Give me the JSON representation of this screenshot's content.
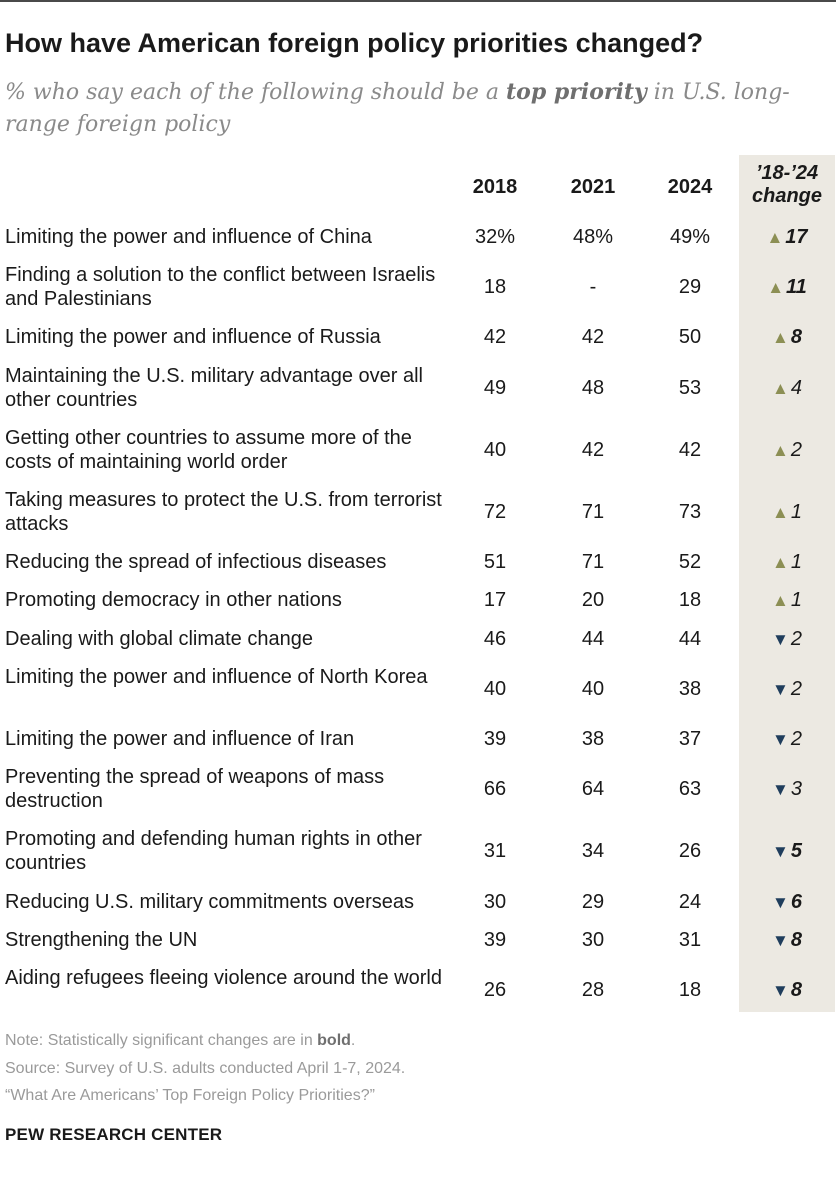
{
  "title": "How have American foreign policy priorities changed?",
  "subtitle_pre": "% who say each of the following should be a ",
  "subtitle_bold": "top priority",
  "subtitle_post": " in U.S. long-range foreign policy",
  "chart_data": {
    "type": "table",
    "columns": [
      "2018",
      "2021",
      "2024"
    ],
    "change_header_line1": "’18-’24",
    "change_header_line2": "change",
    "rows": [
      {
        "label": "Limiting the power and influence of China",
        "v2018": "32%",
        "v2021": "48%",
        "v2024": "49%",
        "change": "17",
        "direction": "up",
        "significant": true
      },
      {
        "label": "Finding a solution to the conflict between Israelis and Palestinians",
        "v2018": "18",
        "v2021": "-",
        "v2024": "29",
        "change": "11",
        "direction": "up",
        "significant": true
      },
      {
        "label": "Limiting the power and influence of Russia",
        "v2018": "42",
        "v2021": "42",
        "v2024": "50",
        "change": "8",
        "direction": "up",
        "significant": true
      },
      {
        "label": "Maintaining the U.S. military advantage over all other countries",
        "v2018": "49",
        "v2021": "48",
        "v2024": "53",
        "change": "4",
        "direction": "up",
        "significant": false
      },
      {
        "label": "Getting other countries to assume more of the costs of maintaining world order",
        "v2018": "40",
        "v2021": "42",
        "v2024": "42",
        "change": "2",
        "direction": "up",
        "significant": false
      },
      {
        "label": "Taking measures to protect the U.S. from terrorist attacks",
        "v2018": "72",
        "v2021": "71",
        "v2024": "73",
        "change": "1",
        "direction": "up",
        "significant": false
      },
      {
        "label": "Reducing the spread of infectious diseases",
        "v2018": "51",
        "v2021": "71",
        "v2024": "52",
        "change": "1",
        "direction": "up",
        "significant": false
      },
      {
        "label": "Promoting democracy in other nations",
        "v2018": "17",
        "v2021": "20",
        "v2024": "18",
        "change": "1",
        "direction": "up",
        "significant": false
      },
      {
        "label": "Dealing with global climate change",
        "v2018": "46",
        "v2021": "44",
        "v2024": "44",
        "change": "2",
        "direction": "down",
        "significant": false
      },
      {
        "label": "Limiting the power and influence of North Korea",
        "v2018": "40",
        "v2021": "40",
        "v2024": "38",
        "change": "2",
        "direction": "down",
        "significant": false
      },
      {
        "label": "Limiting the power and influence of Iran",
        "v2018": "39",
        "v2021": "38",
        "v2024": "37",
        "change": "2",
        "direction": "down",
        "significant": false
      },
      {
        "label": "Preventing the spread of weapons of mass destruction",
        "v2018": "66",
        "v2021": "64",
        "v2024": "63",
        "change": "3",
        "direction": "down",
        "significant": false
      },
      {
        "label": "Promoting and defending human rights in other countries",
        "v2018": "31",
        "v2021": "34",
        "v2024": "26",
        "change": "5",
        "direction": "down",
        "significant": true
      },
      {
        "label": "Reducing U.S. military commitments overseas",
        "v2018": "30",
        "v2021": "29",
        "v2024": "24",
        "change": "6",
        "direction": "down",
        "significant": true
      },
      {
        "label": "Strengthening the UN",
        "v2018": "39",
        "v2021": "30",
        "v2024": "31",
        "change": "8",
        "direction": "down",
        "significant": true
      },
      {
        "label": "Aiding refugees fleeing violence around the world",
        "v2018": "26",
        "v2021": "28",
        "v2024": "18",
        "change": "8",
        "direction": "down",
        "significant": true
      }
    ],
    "colors": {
      "up": "#8c8f54",
      "down": "#1f3d5c",
      "change_bg": "#ece9e2"
    }
  },
  "footer": {
    "note_pre": "Note: Statistically significant changes are in ",
    "note_bold": "bold",
    "note_post": ".",
    "source": "Source: Survey of U.S. adults conducted April 1-7, 2024.",
    "report": "“What Are Americans’ Top Foreign Policy Priorities?”"
  },
  "brand": "PEW RESEARCH CENTER"
}
